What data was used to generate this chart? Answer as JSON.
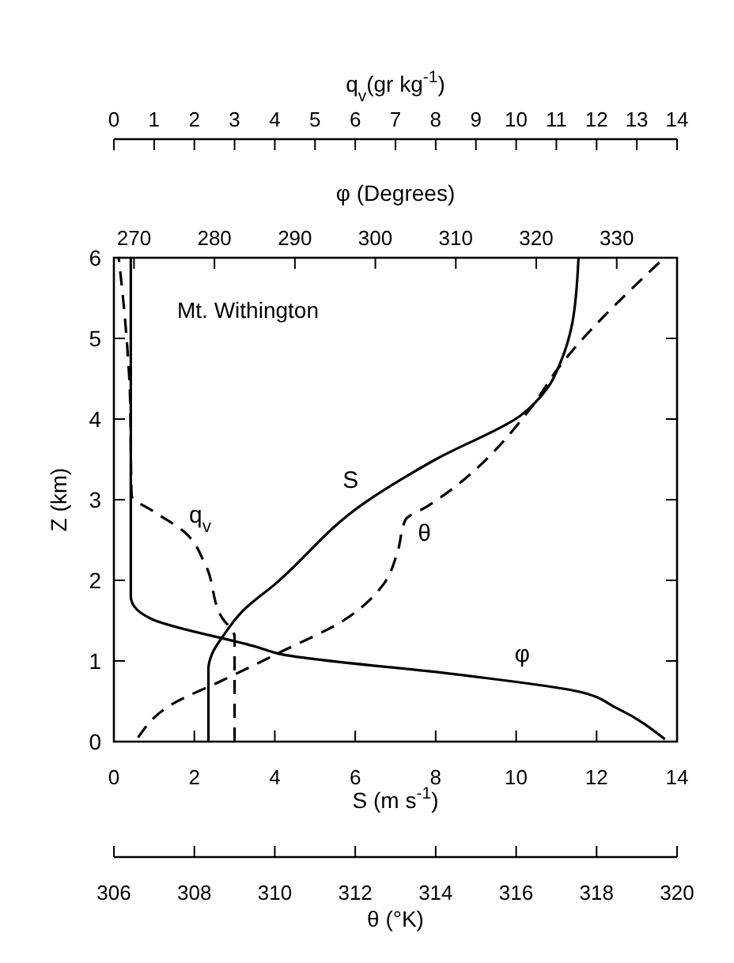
{
  "chart_data": [
    {
      "type": "line",
      "ylabel": "Z (km)",
      "ylim": [
        0,
        6
      ],
      "yticks": [
        0,
        1,
        2,
        3,
        4,
        5,
        6
      ],
      "xlabel": "S (m s$^{-1}$)",
      "xlim": [
        0,
        14
      ],
      "xticks": [
        0,
        2,
        4,
        6,
        8,
        10,
        12,
        14
      ],
      "x2label": "φ (Degrees)",
      "x2lim": [
        267.5,
        337.5
      ],
      "x2ticks": [
        270,
        280,
        290,
        300,
        310,
        320,
        330
      ],
      "grid": false,
      "marker": "none",
      "annotations": [
        "Mt. Withington"
      ],
      "series": [
        {
          "name": "S",
          "color": "#000000",
          "line_style": "solid",
          "x": [
            2.35,
            2.35,
            2.45,
            2.7,
            3.2,
            4,
            6.2,
            8,
            10.1,
            10.8,
            11.1,
            11.4,
            11.55
          ],
          "values": [
            0,
            0.9,
            1.1,
            1.3,
            1.62,
            1.95,
            2.95,
            3.5,
            4.04,
            4.4,
            4.7,
            5.2,
            6
          ]
        },
        {
          "name": "φ",
          "axis": "x2",
          "color": "#000000",
          "line_style": "solid",
          "x": [
            336.0,
            330.1,
            324.8,
            310.4,
            288,
            285.4,
            272.2,
            270,
            269.6,
            269.6
          ],
          "values": [
            0.03,
            0.41,
            0.63,
            0.83,
            1.09,
            1.17,
            1.52,
            1.68,
            1.8,
            6
          ]
        }
      ]
    },
    {
      "type": "line",
      "ylim": [
        0,
        6
      ],
      "tick_labels": "x",
      "xlabel": "θ (°K)",
      "xlim": [
        306,
        320
      ],
      "xticks": [
        306,
        308,
        310,
        312,
        314,
        316,
        318,
        320
      ],
      "x2label": "q$_{v}$(gr kg$^{-1}$)",
      "x2lim": [
        0,
        14
      ],
      "x2ticks": [
        0,
        1,
        2,
        3,
        4,
        5,
        6,
        7,
        8,
        9,
        10,
        11,
        12,
        13,
        14
      ],
      "grid": false,
      "marker": "none",
      "series": [
        {
          "name": "θ",
          "color": "#000000",
          "line_style": "dashed",
          "x": [
            306.6,
            307.4,
            308.7,
            310.1,
            311.7,
            312.7,
            313.05,
            313.25,
            313.8,
            316.4,
            317.0,
            319.6
          ],
          "values": [
            0.05,
            0.45,
            0.76,
            1.1,
            1.5,
            1.95,
            2.35,
            2.75,
            2.92,
            4.16,
            4.6,
            5.96
          ]
        },
        {
          "name": "q$_{v}$",
          "axis": "x2",
          "color": "#000000",
          "line_style": "dashed",
          "x": [
            3.0,
            3.0,
            2.67,
            2.27,
            1.75,
            0.97,
            0.44,
            0.4,
            0.3,
            0.12
          ],
          "values": [
            0,
            1.3,
            1.55,
            2.2,
            2.6,
            2.86,
            3.05,
            4.3,
            5.1,
            6
          ]
        }
      ]
    }
  ]
}
